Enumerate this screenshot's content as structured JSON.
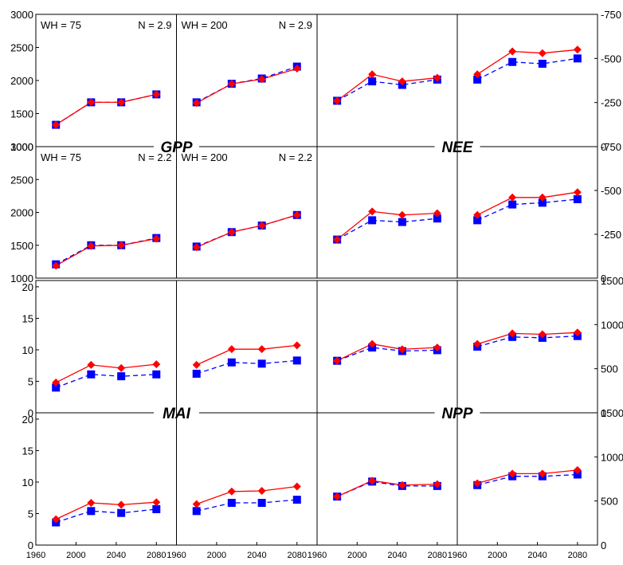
{
  "chart_data": {
    "type": "line",
    "x": [
      1980,
      2015,
      2045,
      2080
    ],
    "colors": {
      "series_a": "#ff0000",
      "series_b": "#0000ff"
    },
    "markers": {
      "series_a": "diamond",
      "series_b": "square"
    },
    "line_styles": {
      "series_a": "solid",
      "series_b": "dashed"
    },
    "x_ticks": [
      "1960",
      "2000",
      "2040",
      "2080",
      "1960",
      "2000",
      "2040",
      "2080"
    ],
    "variables": [
      {
        "title": "GPP",
        "yticks": [
          "3000",
          "2500",
          "2000",
          "1500",
          "1000"
        ],
        "ylim": [
          1000,
          3000
        ],
        "tick_side": "left",
        "panels": [
          {
            "annotation_left": "WH = 75",
            "annotation_right": "N = 2.9",
            "series_a": [
              1330,
              1670,
              1670,
              1790
            ],
            "series_b": [
              1330,
              1670,
              1670,
              1790
            ]
          },
          {
            "annotation_left": "WH = 200",
            "annotation_right": "N = 2.9",
            "series_a": [
              1660,
              1950,
              2020,
              2180
            ],
            "series_b": [
              1670,
              1950,
              2030,
              2210
            ]
          },
          {
            "annotation_left": "WH = 75",
            "annotation_right": "N = 2.2",
            "series_a": [
              1190,
              1490,
              1500,
              1600
            ],
            "series_b": [
              1210,
              1500,
              1500,
              1610
            ]
          },
          {
            "annotation_left": "WH = 200",
            "annotation_right": "N = 2.2",
            "series_a": [
              1470,
              1700,
              1800,
              1960
            ],
            "series_b": [
              1480,
              1700,
              1800,
              1960
            ]
          }
        ]
      },
      {
        "title": "NEE",
        "yticks": [
          "-750",
          "-500",
          "-250",
          "0"
        ],
        "ylim": [
          0,
          -750
        ],
        "tick_side": "right",
        "panels": [
          {
            "series_a": [
              -260,
              -410,
              -370,
              -390
            ],
            "series_b": [
              -260,
              -370,
              -350,
              -380
            ]
          },
          {
            "series_a": [
              -410,
              -540,
              -530,
              -550
            ],
            "series_b": [
              -380,
              -480,
              -470,
              -500
            ]
          },
          {
            "series_a": [
              -220,
              -380,
              -360,
              -370
            ],
            "series_b": [
              -220,
              -330,
              -320,
              -340
            ]
          },
          {
            "series_a": [
              -360,
              -460,
              -460,
              -490
            ],
            "series_b": [
              -330,
              -420,
              -430,
              -450
            ]
          }
        ]
      },
      {
        "title": "MAI",
        "yticks": [
          "20",
          "15",
          "10",
          "5",
          "0"
        ],
        "ylim": [
          0,
          21
        ],
        "tick_side": "left",
        "panels": [
          {
            "series_a": [
              4.8,
              7.6,
              7.1,
              7.7
            ],
            "series_b": [
              4.0,
              6.1,
              5.8,
              6.1
            ]
          },
          {
            "series_a": [
              7.6,
              10.1,
              10.1,
              10.7
            ],
            "series_b": [
              6.2,
              8.0,
              7.8,
              8.3
            ]
          },
          {
            "series_a": [
              4.1,
              6.7,
              6.4,
              6.8
            ],
            "series_b": [
              3.6,
              5.4,
              5.1,
              5.7
            ]
          },
          {
            "series_a": [
              6.5,
              8.5,
              8.6,
              9.3
            ],
            "series_b": [
              5.4,
              6.7,
              6.7,
              7.2
            ]
          }
        ]
      },
      {
        "title": "NPP",
        "yticks": [
          "1500",
          "1000",
          "500",
          "0"
        ],
        "ylim": [
          0,
          1500
        ],
        "tick_side": "right",
        "panels": [
          {
            "series_a": [
              590,
              780,
              720,
              740
            ],
            "series_b": [
              590,
              740,
              700,
              710
            ]
          },
          {
            "series_a": [
              780,
              900,
              890,
              910
            ],
            "series_b": [
              750,
              860,
              850,
              870
            ]
          },
          {
            "series_a": [
              550,
              730,
              680,
              690
            ],
            "series_b": [
              550,
              720,
              670,
              670
            ]
          },
          {
            "series_a": [
              700,
              810,
              810,
              850
            ],
            "series_b": [
              680,
              780,
              780,
              800
            ]
          }
        ]
      }
    ]
  }
}
